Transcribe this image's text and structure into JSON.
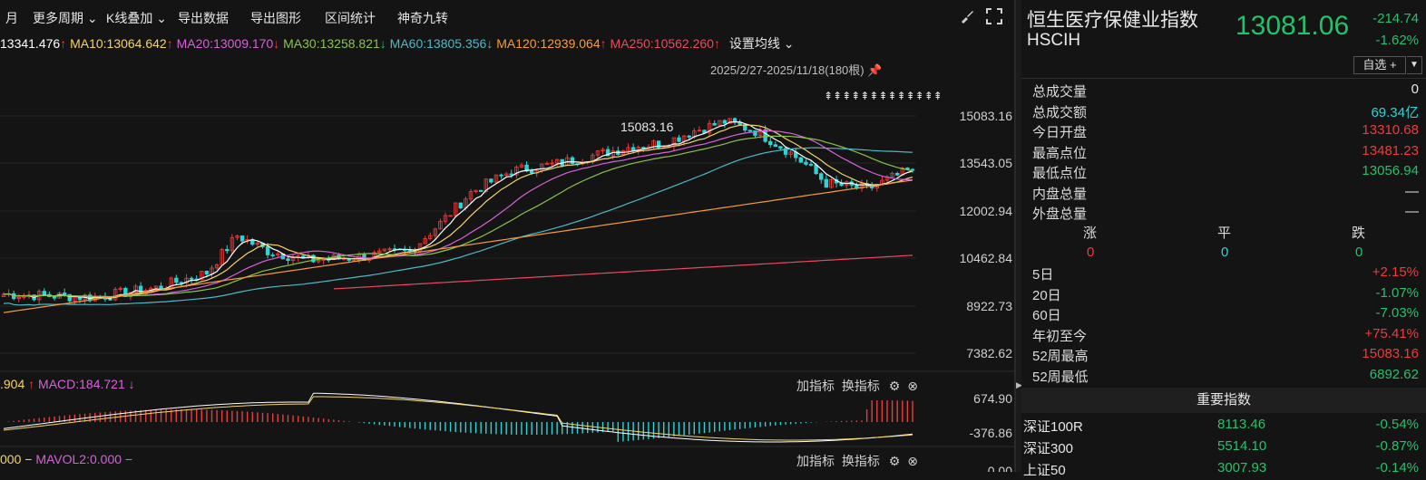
{
  "toolbar": {
    "items": [
      "月",
      "更多周期",
      "K线叠加",
      "导出数据",
      "导出图形",
      "区间统计",
      "神奇九转"
    ]
  },
  "ma_bar": {
    "ma5": "13341.476",
    "ma10": "MA10:13064.642",
    "ma20": "MA20:13009.170",
    "ma30": "MA30:13258.821",
    "ma60": "MA60:13805.356",
    "ma120": "MA120:12939.064",
    "ma250": "MA250:10562.260",
    "settings": "设置均线",
    "arrow_up": "↑",
    "arrow_down": "↓"
  },
  "range_label": "2025/2/27-2025/11/18(180根)",
  "high_marker": "15083.16",
  "y_axis": [
    "15083.16",
    "13543.05",
    "12002.94",
    "10462.84",
    "8922.73",
    "7382.62"
  ],
  "macd_bar": {
    "prefix": ".904",
    "arrow_up": "↑",
    "label": "MACD:184.721",
    "arrow_down": "↓",
    "add": "加指标",
    "switch": "换指标",
    "y_top": "674.90",
    "y_bottom": "-376.86"
  },
  "vol_bar": {
    "prefix": "000",
    "dash": "−",
    "label": "MAVOL2:0.000",
    "add": "加指标",
    "switch": "换指标",
    "y_top": "0.00"
  },
  "quote": {
    "name": "恒生医疗保健业指数",
    "code": "HSCIH",
    "price": "13081.06",
    "change": "-214.74",
    "pct": "-1.62%",
    "watch": "自选 +",
    "dropdown": "▼"
  },
  "stats": [
    {
      "label": "总成交量",
      "value": "0",
      "color": "#e6e6e6"
    },
    {
      "label": "总成交额",
      "value": "69.34亿",
      "color": "#2fd3d3"
    },
    {
      "label": "今日开盘",
      "value": "13310.68",
      "color": "#ee3b3b"
    },
    {
      "label": "最高点位",
      "value": "13481.23",
      "color": "#ee3b3b"
    },
    {
      "label": "最低点位",
      "value": "13056.94",
      "color": "#24c16b"
    },
    {
      "label": "内盘总量",
      "value": "—",
      "color": "#e6e6e6"
    },
    {
      "label": "外盘总量",
      "value": "—",
      "color": "#e6e6e6"
    }
  ],
  "updown": {
    "up_label": "涨",
    "flat_label": "平",
    "down_label": "跌",
    "up": "0",
    "flat": "0",
    "down": "0"
  },
  "periods": [
    {
      "label": "5日",
      "value": "+2.15%",
      "color": "#ee3b3b"
    },
    {
      "label": "20日",
      "value": "-1.07%",
      "color": "#24c16b"
    },
    {
      "label": "60日",
      "value": "-7.03%",
      "color": "#24c16b"
    },
    {
      "label": "年初至今",
      "value": "+75.41%",
      "color": "#ee3b3b"
    },
    {
      "label": "52周最高",
      "value": "15083.16",
      "color": "#ee3b3b"
    },
    {
      "label": "52周最低",
      "value": "6892.62",
      "color": "#24c16b"
    }
  ],
  "important": {
    "title": "重要指数",
    "rows": [
      {
        "name": "深证100R",
        "price": "8113.46",
        "pct": "-0.54%"
      },
      {
        "name": "深证300",
        "price": "5514.10",
        "pct": "-0.87%"
      },
      {
        "name": "上证50",
        "price": "3007.93",
        "pct": "-0.14%"
      }
    ]
  },
  "colors": {
    "up": "#ee3b3b",
    "down": "#24c16b",
    "ma5": "#ffffff",
    "ma10": "#f3d36b",
    "ma20": "#d563d8",
    "ma30": "#8bc34a",
    "ma60": "#4fb8c8",
    "ma120": "#f39c3b",
    "ma250": "#e84a5f"
  }
}
